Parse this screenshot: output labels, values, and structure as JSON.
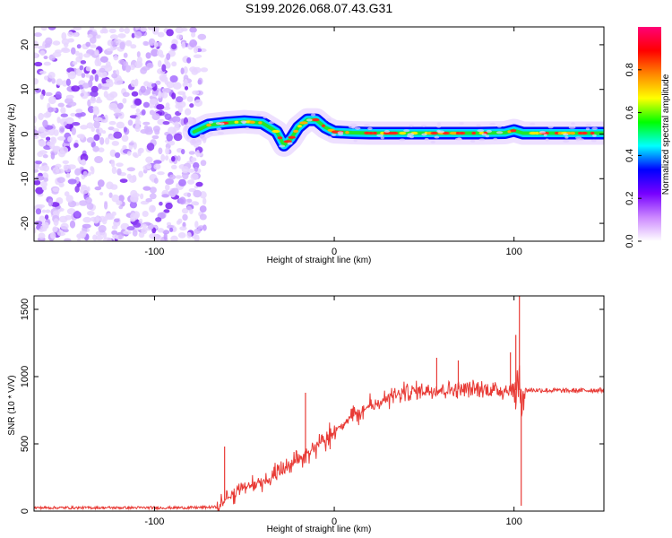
{
  "title": "S199.2026.068.07.43.G31",
  "chart_data": [
    {
      "type": "heatmap",
      "xlabel": "Height of straight line (km)",
      "ylabel": "Frequency (Hz)",
      "xlim": [
        -167,
        150
      ],
      "ylim": [
        -24,
        24
      ],
      "x_ticks": [
        "-100",
        "0",
        "100"
      ],
      "x_tick_values": [
        -100,
        0,
        100
      ],
      "y_ticks": [
        "20",
        "10",
        "0",
        "-10",
        "-20"
      ],
      "y_tick_values": [
        20,
        10,
        0,
        -10,
        -20
      ],
      "noise_region": [
        -167,
        -75
      ],
      "ridge": {
        "x": [
          -78,
          -70,
          -60,
          -50,
          -40,
          -32,
          -28,
          -24,
          -20,
          -15,
          -10,
          -5,
          0,
          10,
          20,
          40,
          60,
          80,
          95,
          100,
          105,
          120,
          140,
          150
        ],
        "y": [
          0.5,
          2,
          2.5,
          2.8,
          2.5,
          0.5,
          -2.5,
          -1,
          1.5,
          3.2,
          3.2,
          1.5,
          0.5,
          0.3,
          0.2,
          0.2,
          0.2,
          0.2,
          0.3,
          0.8,
          0.2,
          0.2,
          0.2,
          0.2
        ]
      },
      "colorbar": {
        "label": "Normalized spectral amplitude",
        "range": [
          0,
          1
        ],
        "ticks": [
          "0.0",
          "0.2",
          "0.4",
          "0.6",
          "0.8"
        ],
        "tick_values": [
          0,
          0.2,
          0.4,
          0.6,
          0.8
        ],
        "colors": [
          "#ffffff",
          "#cc88ff",
          "#7700ff",
          "#0000ff",
          "#00ffff",
          "#00ff00",
          "#ffff00",
          "#ff8800",
          "#ff0000",
          "#ff0077"
        ]
      }
    },
    {
      "type": "line",
      "xlabel": "Height of straight line (km)",
      "ylabel": "SNR (10 * V/V)",
      "xlim": [
        -167,
        150
      ],
      "ylim": [
        0,
        1600
      ],
      "x_ticks": [
        "-100",
        "0",
        "100"
      ],
      "x_tick_values": [
        -100,
        0,
        100
      ],
      "y_ticks": [
        "0",
        "500",
        "1000",
        "1500"
      ],
      "y_tick_values": [
        0,
        500,
        1000,
        1500
      ],
      "color": "#e83b36",
      "trend": {
        "x": [
          -167,
          -80,
          -65,
          -55,
          -40,
          -30,
          -20,
          -10,
          0,
          10,
          20,
          30,
          40,
          50,
          60,
          80,
          95,
          100,
          110,
          130,
          150
        ],
        "y": [
          25,
          25,
          30,
          150,
          220,
          280,
          380,
          480,
          600,
          700,
          780,
          840,
          880,
          900,
          905,
          905,
          900,
          900,
          900,
          895,
          900
        ]
      },
      "spikes": [
        {
          "x": -61,
          "y": 480
        },
        {
          "x": -16,
          "y": 880
        },
        {
          "x": 57,
          "y": 1140
        },
        {
          "x": 69,
          "y": 1120
        },
        {
          "x": 98,
          "y": 1180
        },
        {
          "x": 101,
          "y": 1310
        },
        {
          "x": 103,
          "y": 1600
        },
        {
          "x": 104,
          "y": 40
        }
      ]
    }
  ]
}
